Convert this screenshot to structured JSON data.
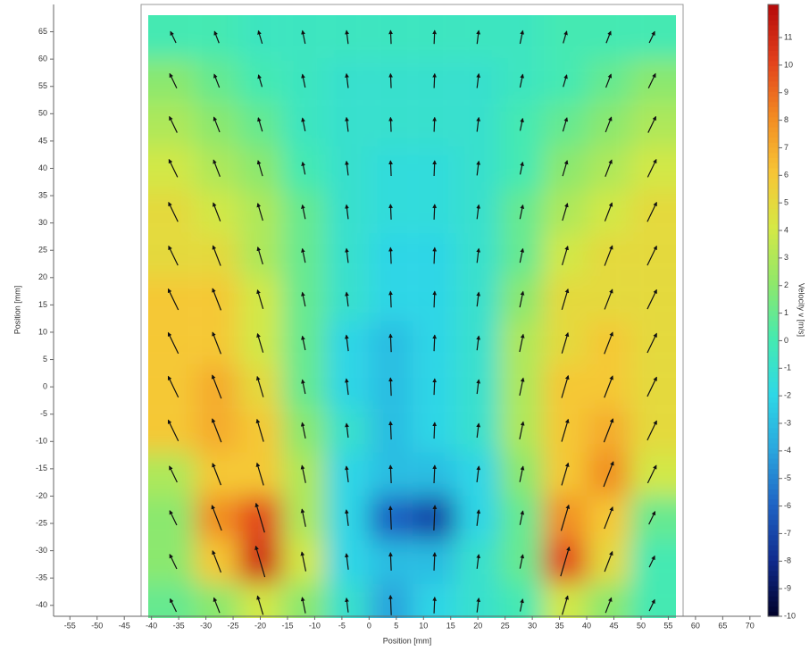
{
  "chart_data": {
    "type": "heatmap",
    "x_label": "Position [mm]",
    "y_label": "Position [mm]",
    "x": [
      -36,
      -28,
      -20,
      -12,
      -4,
      4,
      12,
      20,
      28,
      36,
      44,
      52
    ],
    "y": [
      64,
      56,
      48,
      40,
      32,
      24,
      16,
      8,
      0,
      -8,
      -16,
      -24,
      -32,
      -40
    ],
    "values": [
      [
        0,
        0,
        -0.5,
        -0.5,
        -0.5,
        -0.5,
        -0.5,
        -0.5,
        -0.5,
        0,
        0,
        0
      ],
      [
        2,
        1,
        0,
        -0.5,
        -1,
        -1,
        -1,
        -1,
        -0.5,
        0,
        1,
        2
      ],
      [
        3,
        2,
        1,
        -0.5,
        -1,
        -1,
        -1,
        -1,
        0,
        1,
        2,
        3
      ],
      [
        4,
        3,
        2,
        0,
        -1,
        -1.5,
        -1.5,
        -1,
        0,
        2,
        3,
        4
      ],
      [
        5,
        4,
        3,
        1,
        -1,
        -1.5,
        -1.5,
        -1,
        1,
        3,
        4,
        5
      ],
      [
        5,
        5,
        3,
        1,
        -1,
        -2,
        -2,
        -1,
        1,
        4,
        5,
        5
      ],
      [
        6,
        6,
        4,
        1,
        -1,
        -2,
        -2,
        -1,
        2,
        5,
        5,
        5
      ],
      [
        6,
        6,
        4,
        1,
        -2,
        -3,
        -2,
        -1,
        3,
        5,
        6,
        5
      ],
      [
        6,
        7,
        5,
        1,
        -2,
        -3,
        -2,
        -1,
        3,
        6,
        6,
        5
      ],
      [
        6,
        7,
        6,
        2,
        -1,
        -3,
        -2,
        -1,
        3,
        6,
        7,
        5
      ],
      [
        3,
        6,
        6,
        3,
        -2,
        -3,
        -3,
        -2,
        2,
        6,
        8,
        4
      ],
      [
        2,
        8,
        10,
        3,
        -2,
        -6,
        -7,
        -2,
        1,
        8,
        6,
        1
      ],
      [
        2,
        6,
        11,
        4,
        -2,
        -3,
        -3,
        -1,
        1,
        10,
        5,
        0
      ],
      [
        1,
        2,
        4,
        2,
        -1,
        -4,
        -2,
        -1,
        0,
        4,
        2,
        0
      ]
    ],
    "xlim": [
      -58,
      72
    ],
    "ylim": [
      -42,
      70
    ],
    "xticks": [
      -55,
      -50,
      -45,
      -40,
      -35,
      -30,
      -25,
      -20,
      -15,
      -10,
      -5,
      0,
      5,
      10,
      15,
      20,
      25,
      30,
      35,
      40,
      45,
      50,
      55,
      60,
      65,
      70
    ],
    "yticks": [
      -40,
      -35,
      -30,
      -25,
      -20,
      -15,
      -10,
      -5,
      0,
      5,
      10,
      15,
      20,
      25,
      30,
      35,
      40,
      45,
      50,
      55,
      60,
      65
    ],
    "colorbar": {
      "label": "Velocity v [m/s]",
      "lim": [
        -10,
        12.2
      ],
      "ticks": [
        -10,
        -9,
        -8,
        -7,
        -6,
        -5,
        -4,
        -3,
        -2,
        -1,
        0,
        1,
        2,
        3,
        4,
        5,
        6,
        7,
        8,
        9,
        10,
        11
      ],
      "colors": [
        "#000028",
        "#102a8c",
        "#1f63c4",
        "#2aa6de",
        "#2ed8e6",
        "#45eab0",
        "#8fe86a",
        "#d6e845",
        "#f7c535",
        "#f28a22",
        "#e2401c",
        "#b50a0a"
      ]
    }
  }
}
